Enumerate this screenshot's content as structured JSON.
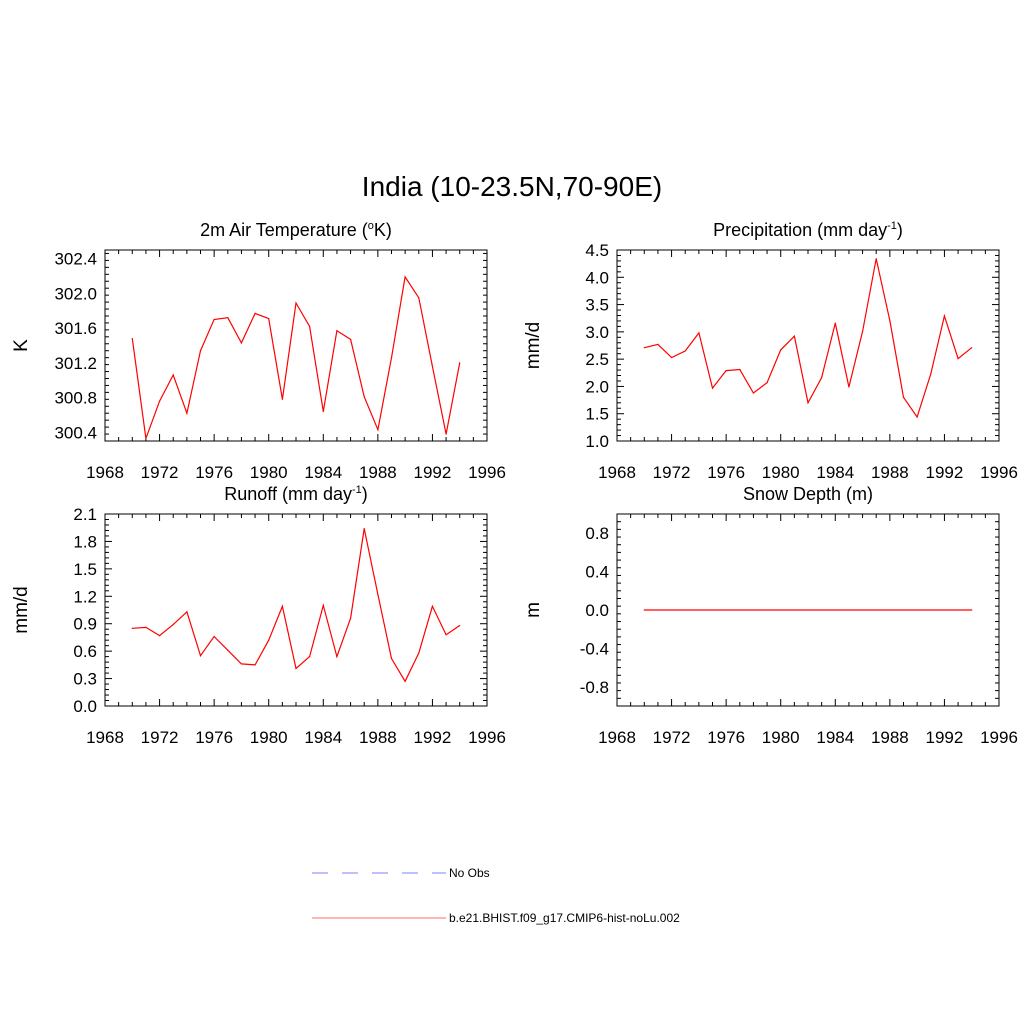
{
  "figure_title": "India (10-23.5N,70-90E)",
  "chart_data": [
    {
      "type": "line",
      "title": "2m Air Temperature (",
      "title_sup": "o",
      "title_end": "K)",
      "ylabel": "K",
      "xlim": [
        1968,
        1996
      ],
      "ylim": [
        300.3,
        302.5
      ],
      "xticks": [
        1968,
        1972,
        1976,
        1980,
        1984,
        1988,
        1992,
        1996
      ],
      "yticks": [
        "300.4",
        "300.8",
        "301.2",
        "301.6",
        "302.0",
        "302.4"
      ],
      "x": [
        1970,
        1971,
        1972,
        1973,
        1974,
        1975,
        1976,
        1977,
        1978,
        1979,
        1980,
        1981,
        1982,
        1983,
        1984,
        1985,
        1986,
        1987,
        1988,
        1989,
        1990,
        1991,
        1992,
        1993,
        1994
      ],
      "series": [
        {
          "color": "#ff0000",
          "values": [
            301.48,
            300.33,
            300.76,
            301.06,
            300.62,
            301.34,
            301.7,
            301.72,
            301.43,
            301.77,
            301.71,
            300.78,
            301.89,
            301.62,
            300.64,
            301.57,
            301.47,
            300.81,
            300.43,
            301.26,
            302.19,
            301.95,
            301.16,
            300.38,
            301.2
          ]
        }
      ]
    },
    {
      "type": "line",
      "title": "Precipitation (mm day",
      "title_sup": "-1",
      "title_end": ")",
      "ylabel": "mm/d",
      "xlim": [
        1968,
        1996
      ],
      "ylim": [
        1.0,
        4.5
      ],
      "xticks": [
        1968,
        1972,
        1976,
        1980,
        1984,
        1988,
        1992,
        1996
      ],
      "yticks": [
        "1.0",
        "1.5",
        "2.0",
        "2.5",
        "3.0",
        "3.5",
        "4.0",
        "4.5"
      ],
      "x": [
        1970,
        1971,
        1972,
        1973,
        1974,
        1975,
        1976,
        1977,
        1978,
        1979,
        1980,
        1981,
        1982,
        1983,
        1984,
        1985,
        1986,
        1987,
        1988,
        1989,
        1990,
        1991,
        1992,
        1993,
        1994
      ],
      "series": [
        {
          "color": "#ff0000",
          "values": [
            2.71,
            2.77,
            2.53,
            2.65,
            2.98,
            1.97,
            2.29,
            2.31,
            1.88,
            2.07,
            2.67,
            2.92,
            1.7,
            2.16,
            3.16,
            1.99,
            3.01,
            4.34,
            3.2,
            1.8,
            1.44,
            2.23,
            3.29,
            2.51,
            2.71
          ]
        }
      ]
    },
    {
      "type": "line",
      "title": "Runoff (mm day",
      "title_sup": "-1",
      "title_end": ")",
      "ylabel": "mm/d",
      "xlim": [
        1968,
        1996
      ],
      "ylim": [
        0.0,
        2.1
      ],
      "xticks": [
        1968,
        1972,
        1976,
        1980,
        1984,
        1988,
        1992,
        1996
      ],
      "yticks": [
        "0.0",
        "0.3",
        "0.6",
        "0.9",
        "1.2",
        "1.5",
        "1.8",
        "2.1"
      ],
      "x": [
        1970,
        1971,
        1972,
        1973,
        1974,
        1975,
        1976,
        1977,
        1978,
        1979,
        1980,
        1981,
        1982,
        1983,
        1984,
        1985,
        1986,
        1987,
        1988,
        1989,
        1990,
        1991,
        1992,
        1993,
        1994
      ],
      "series": [
        {
          "color": "#ff0000",
          "values": [
            0.85,
            0.86,
            0.77,
            0.89,
            1.03,
            0.55,
            0.76,
            0.61,
            0.46,
            0.45,
            0.72,
            1.09,
            0.41,
            0.54,
            1.1,
            0.54,
            0.96,
            1.94,
            1.22,
            0.52,
            0.27,
            0.58,
            1.09,
            0.78,
            0.88
          ]
        }
      ]
    },
    {
      "type": "line",
      "title": "Snow Depth (m)",
      "title_sup": "",
      "title_end": "",
      "ylabel": "m",
      "xlim": [
        1968,
        1996
      ],
      "ylim": [
        -1.0,
        1.0
      ],
      "xticks": [
        1968,
        1972,
        1976,
        1980,
        1984,
        1988,
        1992,
        1996
      ],
      "yticks": [
        "-0.8",
        "-0.4",
        "0.0",
        "0.4",
        "0.8"
      ],
      "x": [
        1970,
        1994
      ],
      "series": [
        {
          "color": "#ff0000",
          "values": [
            0.0,
            0.0
          ]
        }
      ]
    }
  ],
  "legend": [
    {
      "label": "No Obs",
      "color": "#9999ff",
      "style": "dashed"
    },
    {
      "label": "b.e21.BHIST.f09_g17.CMIP6-hist-noLu.002",
      "color": "#ff8a8a",
      "style": "solid"
    }
  ]
}
